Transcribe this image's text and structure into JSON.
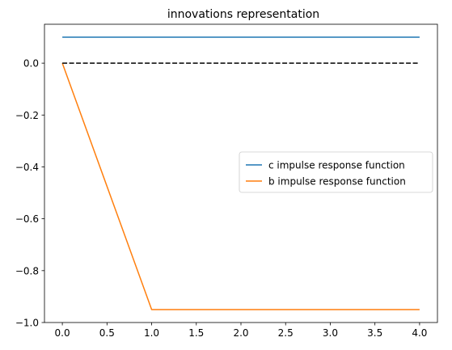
{
  "chart_data": {
    "type": "line",
    "title": "innovations representation",
    "xlabel": "",
    "ylabel": "",
    "xlim": [
      -0.2,
      4.2
    ],
    "ylim": [
      -1.0,
      0.15
    ],
    "xticks": [
      0.0,
      0.5,
      1.0,
      1.5,
      2.0,
      2.5,
      3.0,
      3.5,
      4.0
    ],
    "xtick_labels": [
      "0.0",
      "0.5",
      "1.0",
      "1.5",
      "2.0",
      "2.5",
      "3.0",
      "3.5",
      "4.0"
    ],
    "yticks": [
      0.0,
      -0.2,
      -0.4,
      -0.6,
      -0.8,
      -1.0
    ],
    "ytick_labels": [
      "0.0",
      "−0.2",
      "−0.4",
      "−0.6",
      "−0.8",
      "−1.0"
    ],
    "grid": false,
    "legend_position": "center-right",
    "x": [
      0,
      1,
      2,
      3,
      4
    ],
    "series": [
      {
        "name": "c impulse response function",
        "color": "#1f77b4",
        "style": "solid",
        "values": [
          0.1,
          0.1,
          0.1,
          0.1,
          0.1
        ]
      },
      {
        "name": "b impulse response function",
        "color": "#ff7f0e",
        "style": "solid",
        "values": [
          0.0,
          -0.95,
          -0.95,
          -0.95,
          -0.95
        ]
      }
    ],
    "reference_line": {
      "color": "#000000",
      "style": "dashed",
      "values": [
        0.0,
        0.0,
        0.0,
        0.0,
        0.0
      ]
    }
  }
}
